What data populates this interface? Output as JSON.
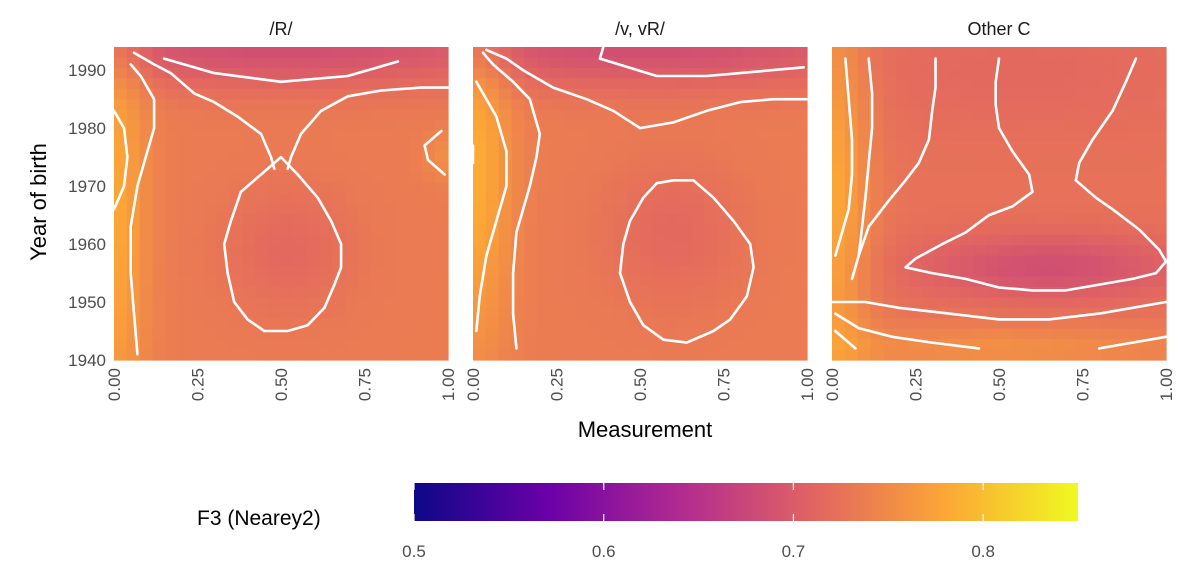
{
  "chart_data": {
    "type": "heatmap",
    "title": "",
    "xlabel": "Measurement",
    "ylabel": "Year of birth",
    "xlim": [
      0,
      1
    ],
    "ylim": [
      1940,
      1994
    ],
    "x_ticks": [
      "0.00",
      "0.25",
      "0.50",
      "0.75",
      "1.00"
    ],
    "y_ticks": [
      "1940",
      "1950",
      "1960",
      "1970",
      "1980",
      "1990"
    ],
    "grid": false,
    "legend": {
      "title": "F3 (Nearey2)",
      "position": "bottom",
      "range": [
        0.5,
        0.85
      ],
      "ticks": [
        "0.5",
        "0.6",
        "0.7",
        "0.8"
      ],
      "colors": [
        "#0d0887",
        "#6a00a8",
        "#b12a90",
        "#e16462",
        "#fca636",
        "#f0f921"
      ]
    },
    "panels": [
      {
        "title": "/R/",
        "surface": {
          "base": 0.735,
          "features": [
            {
              "x": 0.0,
              "y": 1966,
              "sx": 0.07,
              "sy": 30,
              "amp": 0.045
            },
            {
              "x": 0.5,
              "y": 1994,
              "sx": 0.6,
              "sy": 5,
              "amp": -0.05
            },
            {
              "x": 0.52,
              "y": 1959,
              "sx": 0.14,
              "sy": 8,
              "amp": -0.02
            },
            {
              "x": 1.0,
              "y": 1975,
              "sx": 0.05,
              "sy": 3,
              "amp": 0.02
            }
          ]
        },
        "contours": [
          [
            [
              0.07,
              1941
            ],
            [
              0.06,
              1948
            ],
            [
              0.05,
              1955
            ],
            [
              0.05,
              1963
            ],
            [
              0.07,
              1970
            ],
            [
              0.1,
              1976
            ],
            [
              0.12,
              1980
            ],
            [
              0.12,
              1985
            ],
            [
              0.08,
              1989
            ],
            [
              0.05,
              1991
            ]
          ],
          [
            [
              0.0,
              1983
            ],
            [
              0.03,
              1980
            ],
            [
              0.04,
              1975
            ],
            [
              0.03,
              1970
            ],
            [
              0.0,
              1966
            ]
          ],
          [
            [
              0.15,
              1992
            ],
            [
              0.3,
              1989.5
            ],
            [
              0.5,
              1988
            ],
            [
              0.7,
              1989
            ],
            [
              0.85,
              1991.5
            ]
          ],
          [
            [
              0.48,
              1973
            ],
            [
              0.47,
              1975
            ],
            [
              0.44,
              1979
            ],
            [
              0.37,
              1982
            ],
            [
              0.3,
              1984.5
            ],
            [
              0.24,
              1986
            ],
            [
              0.2,
              1988
            ],
            [
              0.17,
              1989.5
            ],
            [
              0.12,
              1991
            ],
            [
              0.06,
              1993
            ]
          ],
          [
            [
              0.52,
              1973
            ],
            [
              0.53,
              1975
            ],
            [
              0.56,
              1979
            ],
            [
              0.62,
              1983
            ],
            [
              0.7,
              1985.5
            ],
            [
              0.8,
              1986.5
            ],
            [
              0.92,
              1987
            ],
            [
              1.0,
              1987
            ]
          ],
          [
            [
              0.5,
              1975
            ],
            [
              0.55,
              1972
            ],
            [
              0.61,
              1968
            ],
            [
              0.65,
              1964
            ],
            [
              0.68,
              1960
            ],
            [
              0.68,
              1956
            ],
            [
              0.66,
              1953
            ],
            [
              0.63,
              1949
            ],
            [
              0.58,
              1946
            ],
            [
              0.52,
              1945
            ],
            [
              0.45,
              1945
            ],
            [
              0.4,
              1947
            ],
            [
              0.36,
              1950
            ],
            [
              0.34,
              1955
            ],
            [
              0.33,
              1960
            ],
            [
              0.35,
              1964
            ],
            [
              0.38,
              1969
            ],
            [
              0.44,
              1972
            ],
            [
              0.5,
              1975
            ]
          ],
          [
            [
              0.99,
              1972
            ],
            [
              0.94,
              1974.5
            ],
            [
              0.93,
              1977
            ],
            [
              0.98,
              1979.5
            ]
          ]
        ]
      },
      {
        "title": "/v, vR/",
        "surface": {
          "base": 0.735,
          "features": [
            {
              "x": 0.0,
              "y": 1972,
              "sx": 0.08,
              "sy": 22,
              "amp": 0.05
            },
            {
              "x": 0.5,
              "y": 1994,
              "sx": 0.6,
              "sy": 5,
              "amp": -0.05
            },
            {
              "x": 0.6,
              "y": 1962,
              "sx": 0.15,
              "sy": 9,
              "amp": -0.02
            }
          ]
        },
        "contours": [
          [
            [
              0.01,
              1945
            ],
            [
              0.02,
              1951
            ],
            [
              0.04,
              1958
            ],
            [
              0.07,
              1964
            ],
            [
              0.1,
              1970
            ],
            [
              0.1,
              1976
            ],
            [
              0.07,
              1982
            ],
            [
              0.03,
              1986
            ],
            [
              0.01,
              1988
            ]
          ],
          [
            [
              0.13,
              1942
            ],
            [
              0.12,
              1948
            ],
            [
              0.12,
              1955
            ],
            [
              0.13,
              1962
            ],
            [
              0.17,
              1970
            ],
            [
              0.19,
              1975
            ],
            [
              0.2,
              1979
            ],
            [
              0.17,
              1985
            ],
            [
              0.12,
              1988
            ],
            [
              0.06,
              1991
            ],
            [
              0.03,
              1993
            ]
          ],
          [
            [
              0.39,
              1994
            ],
            [
              0.38,
              1992
            ],
            [
              0.55,
              1989
            ],
            [
              0.7,
              1989
            ],
            [
              0.8,
              1989.5
            ],
            [
              0.99,
              1990.5
            ]
          ],
          [
            [
              0.0,
              1974
            ],
            [
              0.0,
              1977
            ]
          ],
          [
            [
              0.5,
              1980
            ],
            [
              0.42,
              1983
            ],
            [
              0.34,
              1985
            ],
            [
              0.24,
              1987
            ],
            [
              0.15,
              1990
            ],
            [
              0.1,
              1992
            ],
            [
              0.04,
              1993.5
            ]
          ],
          [
            [
              0.5,
              1980
            ],
            [
              0.6,
              1981
            ],
            [
              0.7,
              1983
            ],
            [
              0.8,
              1984.5
            ],
            [
              0.9,
              1985
            ],
            [
              1.0,
              1985
            ]
          ],
          [
            [
              0.6,
              1971
            ],
            [
              0.66,
              1971
            ],
            [
              0.72,
              1968
            ],
            [
              0.78,
              1964
            ],
            [
              0.83,
              1960
            ],
            [
              0.84,
              1956
            ],
            [
              0.82,
              1951
            ],
            [
              0.77,
              1947
            ],
            [
              0.72,
              1945
            ],
            [
              0.64,
              1943
            ],
            [
              0.57,
              1943.5
            ],
            [
              0.51,
              1946
            ],
            [
              0.47,
              1950
            ],
            [
              0.44,
              1955
            ],
            [
              0.45,
              1960
            ],
            [
              0.47,
              1964
            ],
            [
              0.51,
              1968
            ],
            [
              0.55,
              1970.5
            ],
            [
              0.6,
              1971
            ]
          ]
        ]
      },
      {
        "title": "Other C",
        "surface": {
          "base": 0.725,
          "features": [
            {
              "x": 0.0,
              "y": 1968,
              "sx": 0.08,
              "sy": 26,
              "amp": 0.055
            },
            {
              "x": 0.5,
              "y": 1942,
              "sx": 0.5,
              "sy": 3,
              "amp": 0.03
            },
            {
              "x": 0.65,
              "y": 1956,
              "sx": 0.28,
              "sy": 4,
              "amp": -0.04
            },
            {
              "x": 0.55,
              "y": 1990,
              "sx": 0.45,
              "sy": 8,
              "amp": -0.01
            }
          ]
        },
        "contours": [
          [
            [
              0.01,
              1945
            ],
            [
              0.07,
              1942
            ]
          ],
          [
            [
              0.01,
              1948
            ],
            [
              0.08,
              1945.5
            ],
            [
              0.18,
              1944
            ],
            [
              0.3,
              1943
            ],
            [
              0.44,
              1942
            ]
          ],
          [
            [
              0.8,
              1942
            ],
            [
              0.9,
              1943
            ],
            [
              1.0,
              1944
            ]
          ],
          [
            [
              0.01,
              1958
            ],
            [
              0.03,
              1962
            ],
            [
              0.05,
              1966
            ],
            [
              0.06,
              1972
            ],
            [
              0.06,
              1978
            ],
            [
              0.05,
              1985
            ],
            [
              0.04,
              1992
            ]
          ],
          [
            [
              0.08,
              1958
            ],
            [
              0.09,
              1963
            ],
            [
              0.1,
              1968
            ],
            [
              0.11,
              1974
            ],
            [
              0.12,
              1980
            ],
            [
              0.12,
              1986
            ],
            [
              0.11,
              1992
            ]
          ],
          [
            [
              0.0,
              1950
            ],
            [
              0.05,
              1950
            ],
            [
              0.1,
              1950
            ],
            [
              0.2,
              1949
            ],
            [
              0.35,
              1948
            ],
            [
              0.5,
              1947
            ],
            [
              0.65,
              1947
            ],
            [
              0.8,
              1948
            ],
            [
              0.9,
              1949
            ],
            [
              1.0,
              1950
            ]
          ],
          [
            [
              0.06,
              1954
            ],
            [
              0.08,
              1958
            ],
            [
              0.11,
              1963
            ],
            [
              0.17,
              1967.5
            ],
            [
              0.22,
              1971
            ],
            [
              0.26,
              1974
            ],
            [
              0.29,
              1978
            ],
            [
              0.3,
              1983
            ],
            [
              0.31,
              1987
            ],
            [
              0.31,
              1992
            ]
          ],
          [
            [
              0.5,
              1992
            ],
            [
              0.49,
              1988
            ],
            [
              0.49,
              1984
            ],
            [
              0.5,
              1980
            ],
            [
              0.54,
              1976
            ],
            [
              0.59,
              1972
            ],
            [
              0.6,
              1969
            ],
            [
              0.54,
              1966.5
            ],
            [
              0.47,
              1965
            ],
            [
              0.4,
              1962
            ],
            [
              0.33,
              1960
            ],
            [
              0.25,
              1957.5
            ],
            [
              0.22,
              1956
            ],
            [
              0.3,
              1955
            ],
            [
              0.4,
              1954
            ],
            [
              0.5,
              1952.5
            ],
            [
              0.6,
              1952
            ],
            [
              0.7,
              1952
            ],
            [
              0.8,
              1953
            ],
            [
              0.9,
              1954
            ],
            [
              0.97,
              1955
            ],
            [
              1.0,
              1957
            ],
            [
              0.98,
              1959
            ],
            [
              0.92,
              1962.5
            ],
            [
              0.84,
              1966
            ],
            [
              0.79,
              1968
            ],
            [
              0.73,
              1971
            ],
            [
              0.74,
              1974
            ],
            [
              0.78,
              1978
            ],
            [
              0.84,
              1983
            ],
            [
              0.88,
              1988
            ],
            [
              0.91,
              1992
            ]
          ]
        ]
      }
    ]
  }
}
